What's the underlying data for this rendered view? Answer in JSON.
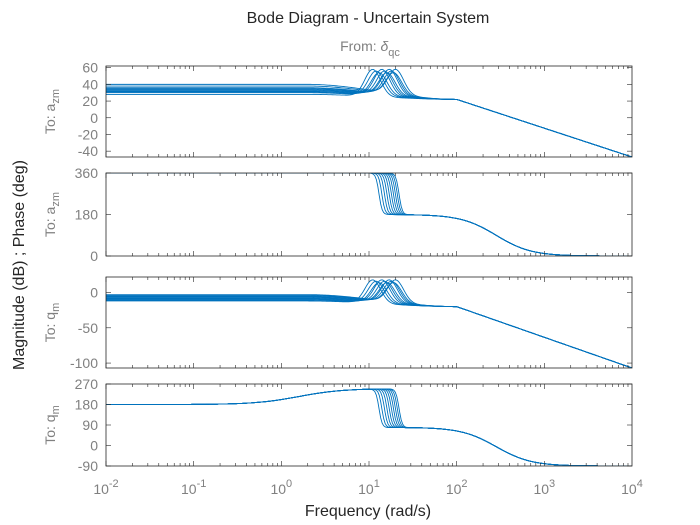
{
  "chart_data": {
    "type": "line",
    "title": "Bode Diagram - Uncertain System",
    "subtitle": "From: δqc",
    "from_label": {
      "prefix": "From: ",
      "symbol": "δ",
      "sub": "qc"
    },
    "xlabel": "Frequency  (rad/s)",
    "ylabel": "Magnitude (dB) ; Phase (deg)",
    "xscale": "log",
    "xlim": [
      0.01,
      10000
    ],
    "xtick_exponents": [
      "-2",
      "-1",
      "0",
      "1",
      "2",
      "3",
      "4"
    ],
    "series_color": "#0072BD",
    "num_samples": 10,
    "panels": [
      {
        "id": "mag-azm",
        "quantity": "magnitude (dB)",
        "output": {
          "prefix": "To: a",
          "sub": "zm"
        },
        "ylim": [
          -47,
          62
        ],
        "yticks": [
          60,
          40,
          20,
          0,
          -20,
          -40
        ],
        "ytick_labels": [
          "60",
          "40",
          "20",
          "0",
          "-20",
          "-40"
        ],
        "low_freq_dc_gains": [
          28,
          30,
          31,
          32,
          33,
          34,
          35,
          36,
          38,
          40
        ],
        "resonance_freqs": [
          11,
          12,
          13,
          14,
          15,
          16,
          17,
          18,
          19,
          20
        ],
        "resonance_peak": 58,
        "value_at_100": 22,
        "value_at_10000": -47
      },
      {
        "id": "phase-azm",
        "quantity": "phase (deg)",
        "output": {
          "prefix": "To: a",
          "sub": "zm"
        },
        "ylim": [
          0,
          360
        ],
        "yticks": [
          360,
          180,
          0
        ],
        "ytick_labels": [
          "360",
          "180",
          "0"
        ],
        "low_freq_value": 360,
        "transition_freqs": [
          13,
          14,
          15,
          16,
          17,
          18,
          19,
          20,
          21,
          22
        ],
        "plateau_value": 180,
        "high_freq_value": 0
      },
      {
        "id": "mag-qm",
        "quantity": "magnitude (dB)",
        "output": {
          "prefix": "To: q",
          "sub": "m"
        },
        "ylim": [
          -107,
          22
        ],
        "yticks": [
          0,
          -50,
          -100
        ],
        "ytick_labels": [
          "0",
          "-50",
          "-100"
        ],
        "low_freq_dc_gains": [
          -12,
          -11,
          -10,
          -9,
          -8,
          -7,
          -6,
          -5,
          -4,
          -3
        ],
        "resonance_freqs": [
          11,
          12,
          13,
          14,
          15,
          16,
          17,
          18,
          19,
          20
        ],
        "resonance_peak": 18,
        "value_at_100": -20,
        "value_at_10000": -107
      },
      {
        "id": "phase-qm",
        "quantity": "phase (deg)",
        "output": {
          "prefix": "To: q",
          "sub": "m"
        },
        "ylim": [
          -90,
          270
        ],
        "yticks": [
          270,
          180,
          90,
          0,
          -90
        ],
        "ytick_labels": [
          "270",
          "180",
          "90",
          "0",
          "-90"
        ],
        "low_freq_value": 180,
        "bump_value": 250,
        "transition_freqs": [
          13,
          14,
          15,
          16,
          17,
          18,
          19,
          20,
          21,
          22
        ],
        "plateau_value": 80,
        "high_freq_value": -90
      }
    ]
  }
}
